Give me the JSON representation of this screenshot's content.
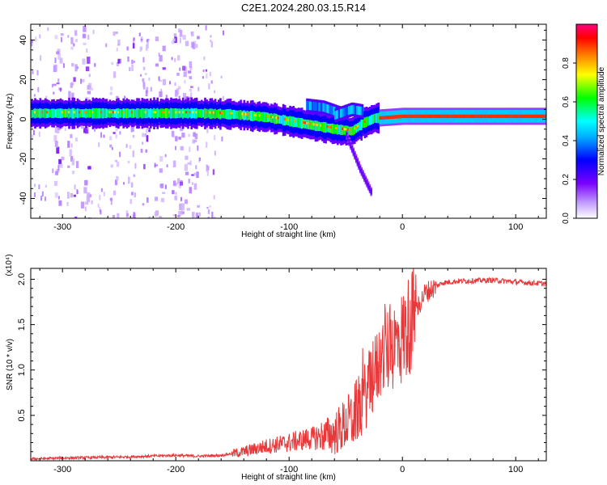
{
  "title": "C2E1.2024.280.03.15.R14",
  "colors": {
    "signal": "#e8383a",
    "frame": "#000000"
  },
  "chart_data": [
    {
      "type": "heatmap",
      "title": "C2E1.2024.280.03.15.R14",
      "xlabel": "Height of straight line (km)",
      "ylabel": "Frequency (Hz)",
      "xlim": [
        -328,
        127
      ],
      "ylim": [
        -50,
        48
      ],
      "xticks": [
        -300,
        -200,
        -100,
        0,
        100
      ],
      "yticks": [
        -40,
        -20,
        0,
        20,
        40
      ],
      "colorbar": {
        "label": "Normalized spectral amplitude",
        "range": [
          0,
          1
        ],
        "ticks": [
          "0.0",
          "0.2",
          "0.4",
          "0.6",
          "0.8"
        ],
        "colormap": [
          "#ffffff",
          "#7a00ff",
          "#0000ff",
          "#00ffff",
          "#00ff00",
          "#ffff00",
          "#ff8000",
          "#ff0000",
          "#ff0080"
        ]
      },
      "ridge": {
        "x": [
          -328,
          -250,
          -180,
          -150,
          -120,
          -100,
          -80,
          -60,
          -45,
          -35,
          -25,
          0,
          127
        ],
        "y": [
          3,
          3,
          3,
          2.5,
          1,
          -1,
          -3,
          -5,
          -6,
          -2,
          0.5,
          1.5,
          1.5
        ]
      },
      "branches": [
        {
          "x": [
            -85,
            -70,
            -55
          ],
          "y": [
            7,
            6,
            3
          ]
        },
        {
          "x": [
            -60,
            -45,
            -35
          ],
          "y": [
            2,
            5,
            4
          ]
        },
        {
          "x": [
            -50,
            -38,
            -28
          ],
          "y": [
            -8,
            -25,
            -37
          ]
        }
      ]
    },
    {
      "type": "line",
      "xlabel": "Height of straight line (km)",
      "ylabel": "SNR (10 * v/v)",
      "scale_label": "(x10⁴)",
      "xlim": [
        -328,
        127
      ],
      "ylim": [
        0,
        2.12
      ],
      "xticks": [
        -300,
        -200,
        -100,
        0,
        100
      ],
      "yticks": [
        "0.5",
        "1.0",
        "1.5",
        "2.0"
      ],
      "series": [
        {
          "x": [
            -328,
            -300,
            -250,
            -200,
            -180,
            -160,
            -140,
            -120,
            -100,
            -80,
            -60,
            -45,
            -35,
            -25,
            -18,
            -10,
            0,
            10,
            20,
            35,
            50,
            80,
            100,
            127
          ],
          "y": [
            0.02,
            0.03,
            0.04,
            0.06,
            0.05,
            0.06,
            0.1,
            0.16,
            0.2,
            0.25,
            0.3,
            0.45,
            0.65,
            0.95,
            1.15,
            1.25,
            1.35,
            1.6,
            1.85,
            1.96,
            1.98,
            1.99,
            1.97,
            1.95
          ]
        }
      ]
    }
  ]
}
